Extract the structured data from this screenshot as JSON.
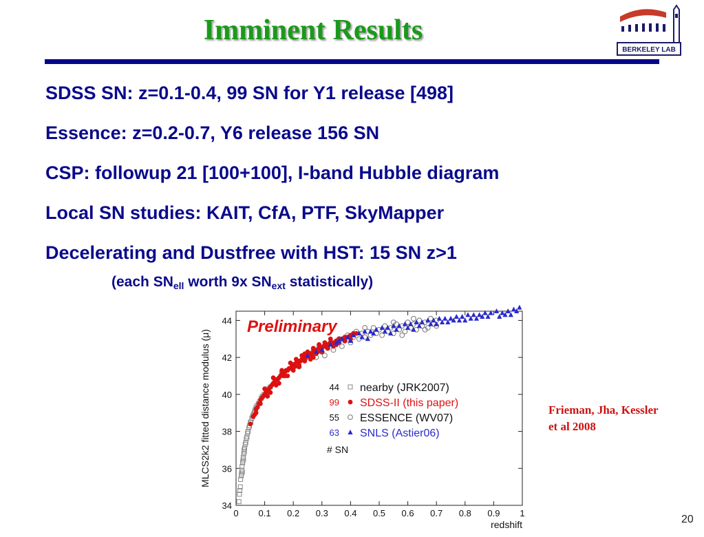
{
  "slide": {
    "title": "Imminent Results",
    "bullets": [
      "SDSS SN: z=0.1-0.4, 99 SN for Y1 release [498]",
      "Essence: z=0.2-0.7, Y6 release 156 SN",
      "CSP: followup 21 [100+100], I-band Hubble diagram",
      "Local SN studies: KAIT, CfA, PTF, SkyMapper",
      "Decelerating and Dustfree with HST: 15 SN z>1"
    ],
    "subnote": {
      "part1": "(each SN",
      "sub1": "ell",
      "part2": " worth 9x SN",
      "sub2": "ext",
      "part3": " statistically)"
    },
    "citation": [
      "Frieman, Jha, Kessler",
      "et al 2008"
    ],
    "page_number": "20",
    "logo_text": "BERKELEY LAB",
    "colors": {
      "title": "#1a9a1a",
      "text": "#0a0a8c",
      "rule": "#06068a",
      "citation": "#cc1111"
    }
  },
  "chart_data": {
    "type": "scatter",
    "annotation": "Preliminary",
    "xlabel": "redshift",
    "ylabel": "MLCS2k2 fitted distance modulus (μ)",
    "xlim": [
      0,
      1
    ],
    "ylim": [
      34,
      44.5
    ],
    "x_ticks": [
      "0",
      "0.1",
      "0.2",
      "0.3",
      "0.4",
      "0.5",
      "0.6",
      "0.7",
      "0.8",
      "0.9",
      "1"
    ],
    "y_ticks": [
      "34",
      "36",
      "38",
      "40",
      "42",
      "44"
    ],
    "legend_placement": "center-right",
    "legend_footer": "# SN",
    "series": [
      {
        "name": "nearby (JRK2007)",
        "count": "44",
        "marker": "open-square",
        "color": "#888888",
        "points": [
          [
            0.01,
            34.2
          ],
          [
            0.012,
            34.6
          ],
          [
            0.013,
            34.8
          ],
          [
            0.015,
            35.0
          ],
          [
            0.016,
            35.4
          ],
          [
            0.018,
            35.6
          ],
          [
            0.019,
            35.7
          ],
          [
            0.02,
            35.9
          ],
          [
            0.021,
            36.1
          ],
          [
            0.022,
            35.8
          ],
          [
            0.023,
            36.3
          ],
          [
            0.024,
            36.4
          ],
          [
            0.025,
            36.6
          ],
          [
            0.026,
            36.5
          ],
          [
            0.027,
            36.8
          ],
          [
            0.028,
            37.0
          ],
          [
            0.029,
            36.9
          ],
          [
            0.03,
            37.1
          ],
          [
            0.032,
            37.3
          ],
          [
            0.034,
            37.4
          ],
          [
            0.036,
            37.6
          ],
          [
            0.038,
            37.7
          ],
          [
            0.04,
            37.9
          ],
          [
            0.042,
            38.0
          ],
          [
            0.045,
            38.2
          ],
          [
            0.047,
            38.3
          ],
          [
            0.05,
            38.5
          ],
          [
            0.052,
            38.5
          ],
          [
            0.055,
            38.7
          ],
          [
            0.058,
            38.8
          ],
          [
            0.06,
            38.9
          ],
          [
            0.063,
            39.0
          ],
          [
            0.065,
            39.1
          ],
          [
            0.068,
            39.2
          ],
          [
            0.07,
            39.3
          ],
          [
            0.074,
            39.4
          ],
          [
            0.078,
            39.5
          ],
          [
            0.082,
            39.6
          ],
          [
            0.088,
            39.8
          ],
          [
            0.092,
            39.9
          ],
          [
            0.098,
            40.0
          ],
          [
            0.105,
            40.1
          ],
          [
            0.11,
            40.3
          ],
          [
            0.12,
            40.4
          ]
        ]
      },
      {
        "name": "SDSS-II (this paper)",
        "count": "99",
        "marker": "filled-circle",
        "color": "#dd1111",
        "points": [
          [
            0.05,
            38.4
          ],
          [
            0.06,
            38.8
          ],
          [
            0.065,
            38.9
          ],
          [
            0.07,
            39.2
          ],
          [
            0.075,
            39.3
          ],
          [
            0.08,
            39.5
          ],
          [
            0.085,
            39.7
          ],
          [
            0.09,
            39.8
          ],
          [
            0.095,
            39.9
          ],
          [
            0.1,
            40.0
          ],
          [
            0.105,
            40.1
          ],
          [
            0.11,
            40.2
          ],
          [
            0.115,
            40.3
          ],
          [
            0.12,
            40.4
          ],
          [
            0.125,
            40.5
          ],
          [
            0.13,
            40.6
          ],
          [
            0.135,
            40.7
          ],
          [
            0.14,
            40.8
          ],
          [
            0.145,
            40.8
          ],
          [
            0.15,
            40.9
          ],
          [
            0.155,
            41.0
          ],
          [
            0.16,
            41.1
          ],
          [
            0.165,
            41.0
          ],
          [
            0.17,
            41.2
          ],
          [
            0.175,
            41.3
          ],
          [
            0.18,
            41.3
          ],
          [
            0.185,
            41.4
          ],
          [
            0.19,
            41.4
          ],
          [
            0.195,
            41.5
          ],
          [
            0.2,
            41.6
          ],
          [
            0.205,
            41.5
          ],
          [
            0.21,
            41.7
          ],
          [
            0.215,
            41.7
          ],
          [
            0.22,
            41.8
          ],
          [
            0.225,
            41.8
          ],
          [
            0.23,
            41.9
          ],
          [
            0.235,
            41.9
          ],
          [
            0.24,
            42.0
          ],
          [
            0.245,
            42.0
          ],
          [
            0.25,
            42.1
          ],
          [
            0.255,
            42.1
          ],
          [
            0.26,
            42.2
          ],
          [
            0.265,
            42.1
          ],
          [
            0.27,
            42.3
          ],
          [
            0.275,
            42.3
          ],
          [
            0.28,
            42.4
          ],
          [
            0.285,
            42.3
          ],
          [
            0.29,
            42.5
          ],
          [
            0.295,
            42.5
          ],
          [
            0.3,
            42.5
          ],
          [
            0.305,
            42.6
          ],
          [
            0.31,
            42.6
          ],
          [
            0.315,
            42.7
          ],
          [
            0.32,
            42.7
          ],
          [
            0.325,
            42.7
          ],
          [
            0.33,
            42.8
          ],
          [
            0.34,
            42.8
          ],
          [
            0.35,
            42.9
          ],
          [
            0.36,
            43.0
          ],
          [
            0.37,
            43.0
          ],
          [
            0.38,
            43.1
          ],
          [
            0.39,
            43.1
          ],
          [
            0.4,
            43.2
          ],
          [
            0.41,
            43.3
          ],
          [
            0.42,
            43.3
          ],
          [
            0.085,
            39.5
          ],
          [
            0.12,
            40.1
          ],
          [
            0.15,
            40.6
          ],
          [
            0.18,
            41.0
          ],
          [
            0.2,
            41.3
          ],
          [
            0.22,
            41.5
          ],
          [
            0.24,
            41.8
          ],
          [
            0.26,
            41.9
          ],
          [
            0.28,
            42.2
          ],
          [
            0.3,
            42.3
          ],
          [
            0.32,
            42.5
          ],
          [
            0.34,
            42.6
          ],
          [
            0.36,
            42.8
          ],
          [
            0.13,
            40.9
          ],
          [
            0.16,
            41.3
          ],
          [
            0.19,
            41.7
          ],
          [
            0.21,
            41.9
          ],
          [
            0.23,
            42.1
          ],
          [
            0.25,
            42.3
          ],
          [
            0.27,
            42.5
          ],
          [
            0.29,
            42.7
          ],
          [
            0.31,
            42.8
          ],
          [
            0.33,
            43.0
          ],
          [
            0.1,
            40.3
          ],
          [
            0.07,
            39.0
          ],
          [
            0.14,
            40.5
          ],
          [
            0.17,
            41.0
          ],
          [
            0.22,
            41.6
          ],
          [
            0.27,
            42.0
          ],
          [
            0.35,
            42.7
          ],
          [
            0.38,
            42.9
          ],
          [
            0.4,
            43.0
          ],
          [
            0.11,
            39.9
          ],
          [
            0.24,
            42.2
          ]
        ]
      },
      {
        "name": "ESSENCE (WV07)",
        "count": "55",
        "marker": "open-circle",
        "color": "#777777",
        "points": [
          [
            0.16,
            41.2
          ],
          [
            0.2,
            41.6
          ],
          [
            0.22,
            41.5
          ],
          [
            0.24,
            41.9
          ],
          [
            0.26,
            42.2
          ],
          [
            0.28,
            42.0
          ],
          [
            0.3,
            42.3
          ],
          [
            0.32,
            42.5
          ],
          [
            0.33,
            42.8
          ],
          [
            0.34,
            42.4
          ],
          [
            0.35,
            42.7
          ],
          [
            0.36,
            43.0
          ],
          [
            0.37,
            42.6
          ],
          [
            0.38,
            42.9
          ],
          [
            0.39,
            43.2
          ],
          [
            0.4,
            42.8
          ],
          [
            0.41,
            43.1
          ],
          [
            0.42,
            43.4
          ],
          [
            0.43,
            43.0
          ],
          [
            0.44,
            43.3
          ],
          [
            0.45,
            43.1
          ],
          [
            0.46,
            43.4
          ],
          [
            0.47,
            43.2
          ],
          [
            0.48,
            43.6
          ],
          [
            0.49,
            43.3
          ],
          [
            0.5,
            43.5
          ],
          [
            0.51,
            43.2
          ],
          [
            0.52,
            43.7
          ],
          [
            0.53,
            43.4
          ],
          [
            0.54,
            43.6
          ],
          [
            0.55,
            43.3
          ],
          [
            0.56,
            43.8
          ],
          [
            0.57,
            43.5
          ],
          [
            0.58,
            43.7
          ],
          [
            0.59,
            43.4
          ],
          [
            0.6,
            43.9
          ],
          [
            0.61,
            43.6
          ],
          [
            0.62,
            43.8
          ],
          [
            0.63,
            43.5
          ],
          [
            0.64,
            44.0
          ],
          [
            0.65,
            43.7
          ],
          [
            0.66,
            43.9
          ],
          [
            0.67,
            43.6
          ],
          [
            0.68,
            44.1
          ],
          [
            0.69,
            43.8
          ],
          [
            0.7,
            44.0
          ],
          [
            0.29,
            42.6
          ],
          [
            0.31,
            42.1
          ],
          [
            0.27,
            42.4
          ],
          [
            0.45,
            43.6
          ],
          [
            0.55,
            43.9
          ],
          [
            0.58,
            43.2
          ],
          [
            0.62,
            44.1
          ],
          [
            0.66,
            43.5
          ],
          [
            0.7,
            43.7
          ]
        ]
      },
      {
        "name": "SNLS (Astier06)",
        "count": "63",
        "marker": "filled-triangle",
        "color": "#2a2acc",
        "points": [
          [
            0.25,
            42.1
          ],
          [
            0.28,
            42.3
          ],
          [
            0.3,
            42.4
          ],
          [
            0.33,
            42.7
          ],
          [
            0.35,
            42.8
          ],
          [
            0.37,
            43.0
          ],
          [
            0.39,
            43.1
          ],
          [
            0.41,
            43.2
          ],
          [
            0.43,
            43.3
          ],
          [
            0.45,
            43.4
          ],
          [
            0.47,
            43.4
          ],
          [
            0.49,
            43.5
          ],
          [
            0.51,
            43.6
          ],
          [
            0.53,
            43.6
          ],
          [
            0.55,
            43.7
          ],
          [
            0.57,
            43.7
          ],
          [
            0.59,
            43.8
          ],
          [
            0.61,
            43.8
          ],
          [
            0.63,
            43.9
          ],
          [
            0.65,
            43.9
          ],
          [
            0.67,
            44.0
          ],
          [
            0.69,
            44.0
          ],
          [
            0.71,
            44.1
          ],
          [
            0.73,
            44.1
          ],
          [
            0.75,
            44.1
          ],
          [
            0.77,
            44.2
          ],
          [
            0.79,
            44.2
          ],
          [
            0.81,
            44.3
          ],
          [
            0.83,
            44.3
          ],
          [
            0.85,
            44.3
          ],
          [
            0.87,
            44.4
          ],
          [
            0.89,
            44.4
          ],
          [
            0.91,
            44.5
          ],
          [
            0.93,
            44.4
          ],
          [
            0.95,
            44.5
          ],
          [
            0.97,
            44.6
          ],
          [
            0.99,
            44.7
          ],
          [
            0.36,
            42.9
          ],
          [
            0.4,
            42.9
          ],
          [
            0.44,
            43.1
          ],
          [
            0.48,
            43.3
          ],
          [
            0.52,
            43.4
          ],
          [
            0.56,
            43.5
          ],
          [
            0.6,
            43.6
          ],
          [
            0.64,
            43.7
          ],
          [
            0.68,
            43.8
          ],
          [
            0.72,
            43.9
          ],
          [
            0.76,
            44.0
          ],
          [
            0.8,
            44.0
          ],
          [
            0.84,
            44.1
          ],
          [
            0.88,
            44.2
          ],
          [
            0.92,
            44.2
          ],
          [
            0.96,
            44.3
          ],
          [
            0.62,
            43.5
          ],
          [
            0.7,
            43.8
          ],
          [
            0.78,
            44.0
          ],
          [
            0.86,
            44.2
          ],
          [
            0.94,
            44.3
          ],
          [
            0.98,
            44.5
          ],
          [
            0.46,
            43.0
          ],
          [
            0.54,
            43.3
          ],
          [
            0.74,
            43.9
          ],
          [
            0.82,
            44.1
          ]
        ]
      }
    ]
  }
}
